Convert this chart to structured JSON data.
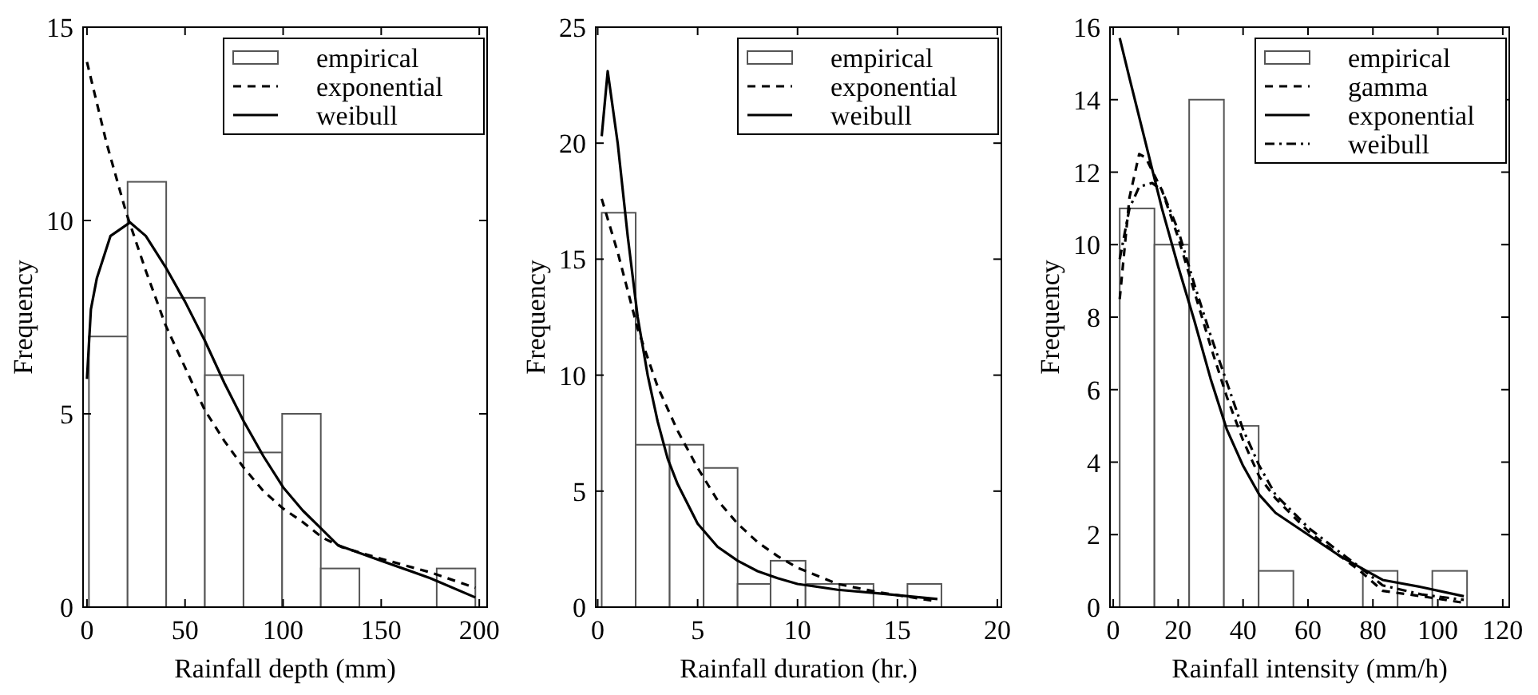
{
  "chart_data": [
    {
      "type": "histogram",
      "xlabel": "Rainfall depth (mm)",
      "ylabel": "Frequency",
      "xlim": [
        -2,
        204
      ],
      "xticks": [
        0,
        50,
        100,
        150,
        200
      ],
      "ylim": [
        0,
        15
      ],
      "yticks": [
        0,
        5,
        10,
        15
      ],
      "legend": "top right",
      "grid": false,
      "series": [
        {
          "name": "empirical",
          "color": "#ffffff",
          "bins": [
            1,
            20.7,
            40.4,
            60.1,
            79.8,
            99.5,
            119.2,
            138.9,
            158.6,
            178.3,
            198
          ],
          "values": [
            7,
            11,
            8,
            6,
            4,
            5,
            1,
            0,
            0,
            1
          ]
        },
        {
          "name": "exponential",
          "type": "line",
          "line_style": "dashed",
          "color": "#000000",
          "x": [
            0,
            10,
            20,
            30,
            40,
            50,
            60,
            70,
            80,
            90,
            100,
            110,
            120,
            130,
            150,
            175,
            198
          ],
          "values": [
            14.1,
            12,
            10.2,
            8.7,
            7.3,
            6.2,
            5.1,
            4.3,
            3.6,
            3.0,
            2.55,
            2.2,
            1.8,
            1.55,
            1.25,
            0.9,
            0.5
          ]
        },
        {
          "name": "weibull",
          "type": "line",
          "line_style": "solid",
          "color": "#000000",
          "x": [
            0,
            2,
            5,
            12,
            22,
            30,
            40,
            50,
            60,
            70,
            80,
            90,
            100,
            110,
            120,
            128,
            150,
            175,
            198
          ],
          "values": [
            5.9,
            7.7,
            8.5,
            9.6,
            9.95,
            9.6,
            8.8,
            7.9,
            6.9,
            5.8,
            4.8,
            3.9,
            3.1,
            2.5,
            2.0,
            1.6,
            1.2,
            0.75,
            0.25
          ]
        }
      ]
    },
    {
      "type": "histogram",
      "xlabel": "Rainfall duration (hr.)",
      "ylabel": "Frequency",
      "xlim": [
        -0.1,
        20.2
      ],
      "xticks": [
        0,
        5,
        10,
        15,
        20
      ],
      "ylim": [
        0,
        25
      ],
      "yticks": [
        0,
        5,
        10,
        15,
        20,
        25
      ],
      "legend": "top right",
      "grid": false,
      "series": [
        {
          "name": "empirical",
          "color": "#ffffff",
          "bins": [
            0.2,
            1.9,
            3.6,
            5.3,
            7.0,
            8.65,
            10.4,
            12.1,
            13.8,
            15.5,
            17.2
          ],
          "values": [
            17,
            7,
            7,
            6,
            1,
            2,
            1,
            1,
            0,
            1
          ]
        },
        {
          "name": "exponential",
          "type": "line",
          "line_style": "dashed",
          "color": "#000000",
          "x": [
            0.2,
            1,
            2,
            3,
            4,
            5,
            6,
            7,
            8,
            9,
            10,
            12,
            14,
            17
          ],
          "values": [
            17.6,
            15.3,
            12,
            9.5,
            7.6,
            6,
            4.6,
            3.6,
            2.8,
            2.2,
            1.7,
            1.0,
            0.65,
            0.25
          ]
        },
        {
          "name": "weibull",
          "type": "line",
          "line_style": "solid",
          "color": "#000000",
          "x": [
            0.2,
            0.5,
            1,
            1.5,
            2,
            2.5,
            3,
            3.5,
            4,
            5,
            6,
            7,
            8,
            9,
            10,
            12,
            14,
            17
          ],
          "values": [
            20.3,
            23.1,
            20,
            16,
            12.5,
            10,
            8,
            6.4,
            5.3,
            3.6,
            2.6,
            2.0,
            1.55,
            1.25,
            1.0,
            0.75,
            0.6,
            0.35
          ]
        }
      ]
    },
    {
      "type": "histogram",
      "xlabel": "Rainfall intensity (mm/h)",
      "ylabel": "Frequency",
      "xlim": [
        -1,
        122
      ],
      "xticks": [
        0,
        20,
        40,
        60,
        80,
        100,
        120
      ],
      "ylim": [
        0,
        16
      ],
      "yticks": [
        0,
        2,
        4,
        6,
        8,
        10,
        12,
        14,
        16
      ],
      "legend": "top right",
      "grid": false,
      "series": [
        {
          "name": "empirical",
          "color": "#ffffff",
          "bins": [
            2,
            12.7,
            23.4,
            34.1,
            44.8,
            55.5,
            66.2,
            76.9,
            87.6,
            98.3,
            109
          ],
          "values": [
            11,
            10,
            14,
            5,
            1,
            0,
            0,
            1,
            0,
            1
          ]
        },
        {
          "name": "gamma",
          "type": "line",
          "line_style": "dashed",
          "color": "#000000",
          "x": [
            2,
            5,
            8,
            10,
            15,
            20,
            25,
            30,
            35,
            40,
            45,
            50,
            60,
            70,
            76,
            83,
            95,
            108
          ],
          "values": [
            8.5,
            11.3,
            12.5,
            12.4,
            11.5,
            10.2,
            8.7,
            7.2,
            5.8,
            4.6,
            3.6,
            3.0,
            2.1,
            1.4,
            1.0,
            0.45,
            0.3,
            0.12
          ]
        },
        {
          "name": "exponential",
          "type": "line",
          "line_style": "solid",
          "color": "#000000",
          "x": [
            2,
            5,
            10,
            15,
            20,
            25,
            30,
            35,
            40,
            45,
            50,
            60,
            70,
            76,
            83,
            95,
            108
          ],
          "values": [
            15.7,
            14.6,
            12.8,
            11,
            9.4,
            7.9,
            6.3,
            4.9,
            3.9,
            3.1,
            2.6,
            2.0,
            1.4,
            1.1,
            0.75,
            0.55,
            0.3
          ]
        },
        {
          "name": "weibull",
          "type": "line",
          "line_style": "dashdot",
          "color": "#000000",
          "x": [
            2,
            5,
            8,
            12,
            15,
            20,
            25,
            30,
            35,
            40,
            45,
            50,
            60,
            70,
            76,
            83,
            95,
            108
          ],
          "values": [
            9.6,
            11,
            11.6,
            11.7,
            11.5,
            10.4,
            8.9,
            7.5,
            6.2,
            4.9,
            3.9,
            3.1,
            2.2,
            1.5,
            1.1,
            0.6,
            0.35,
            0.2
          ]
        }
      ]
    }
  ]
}
